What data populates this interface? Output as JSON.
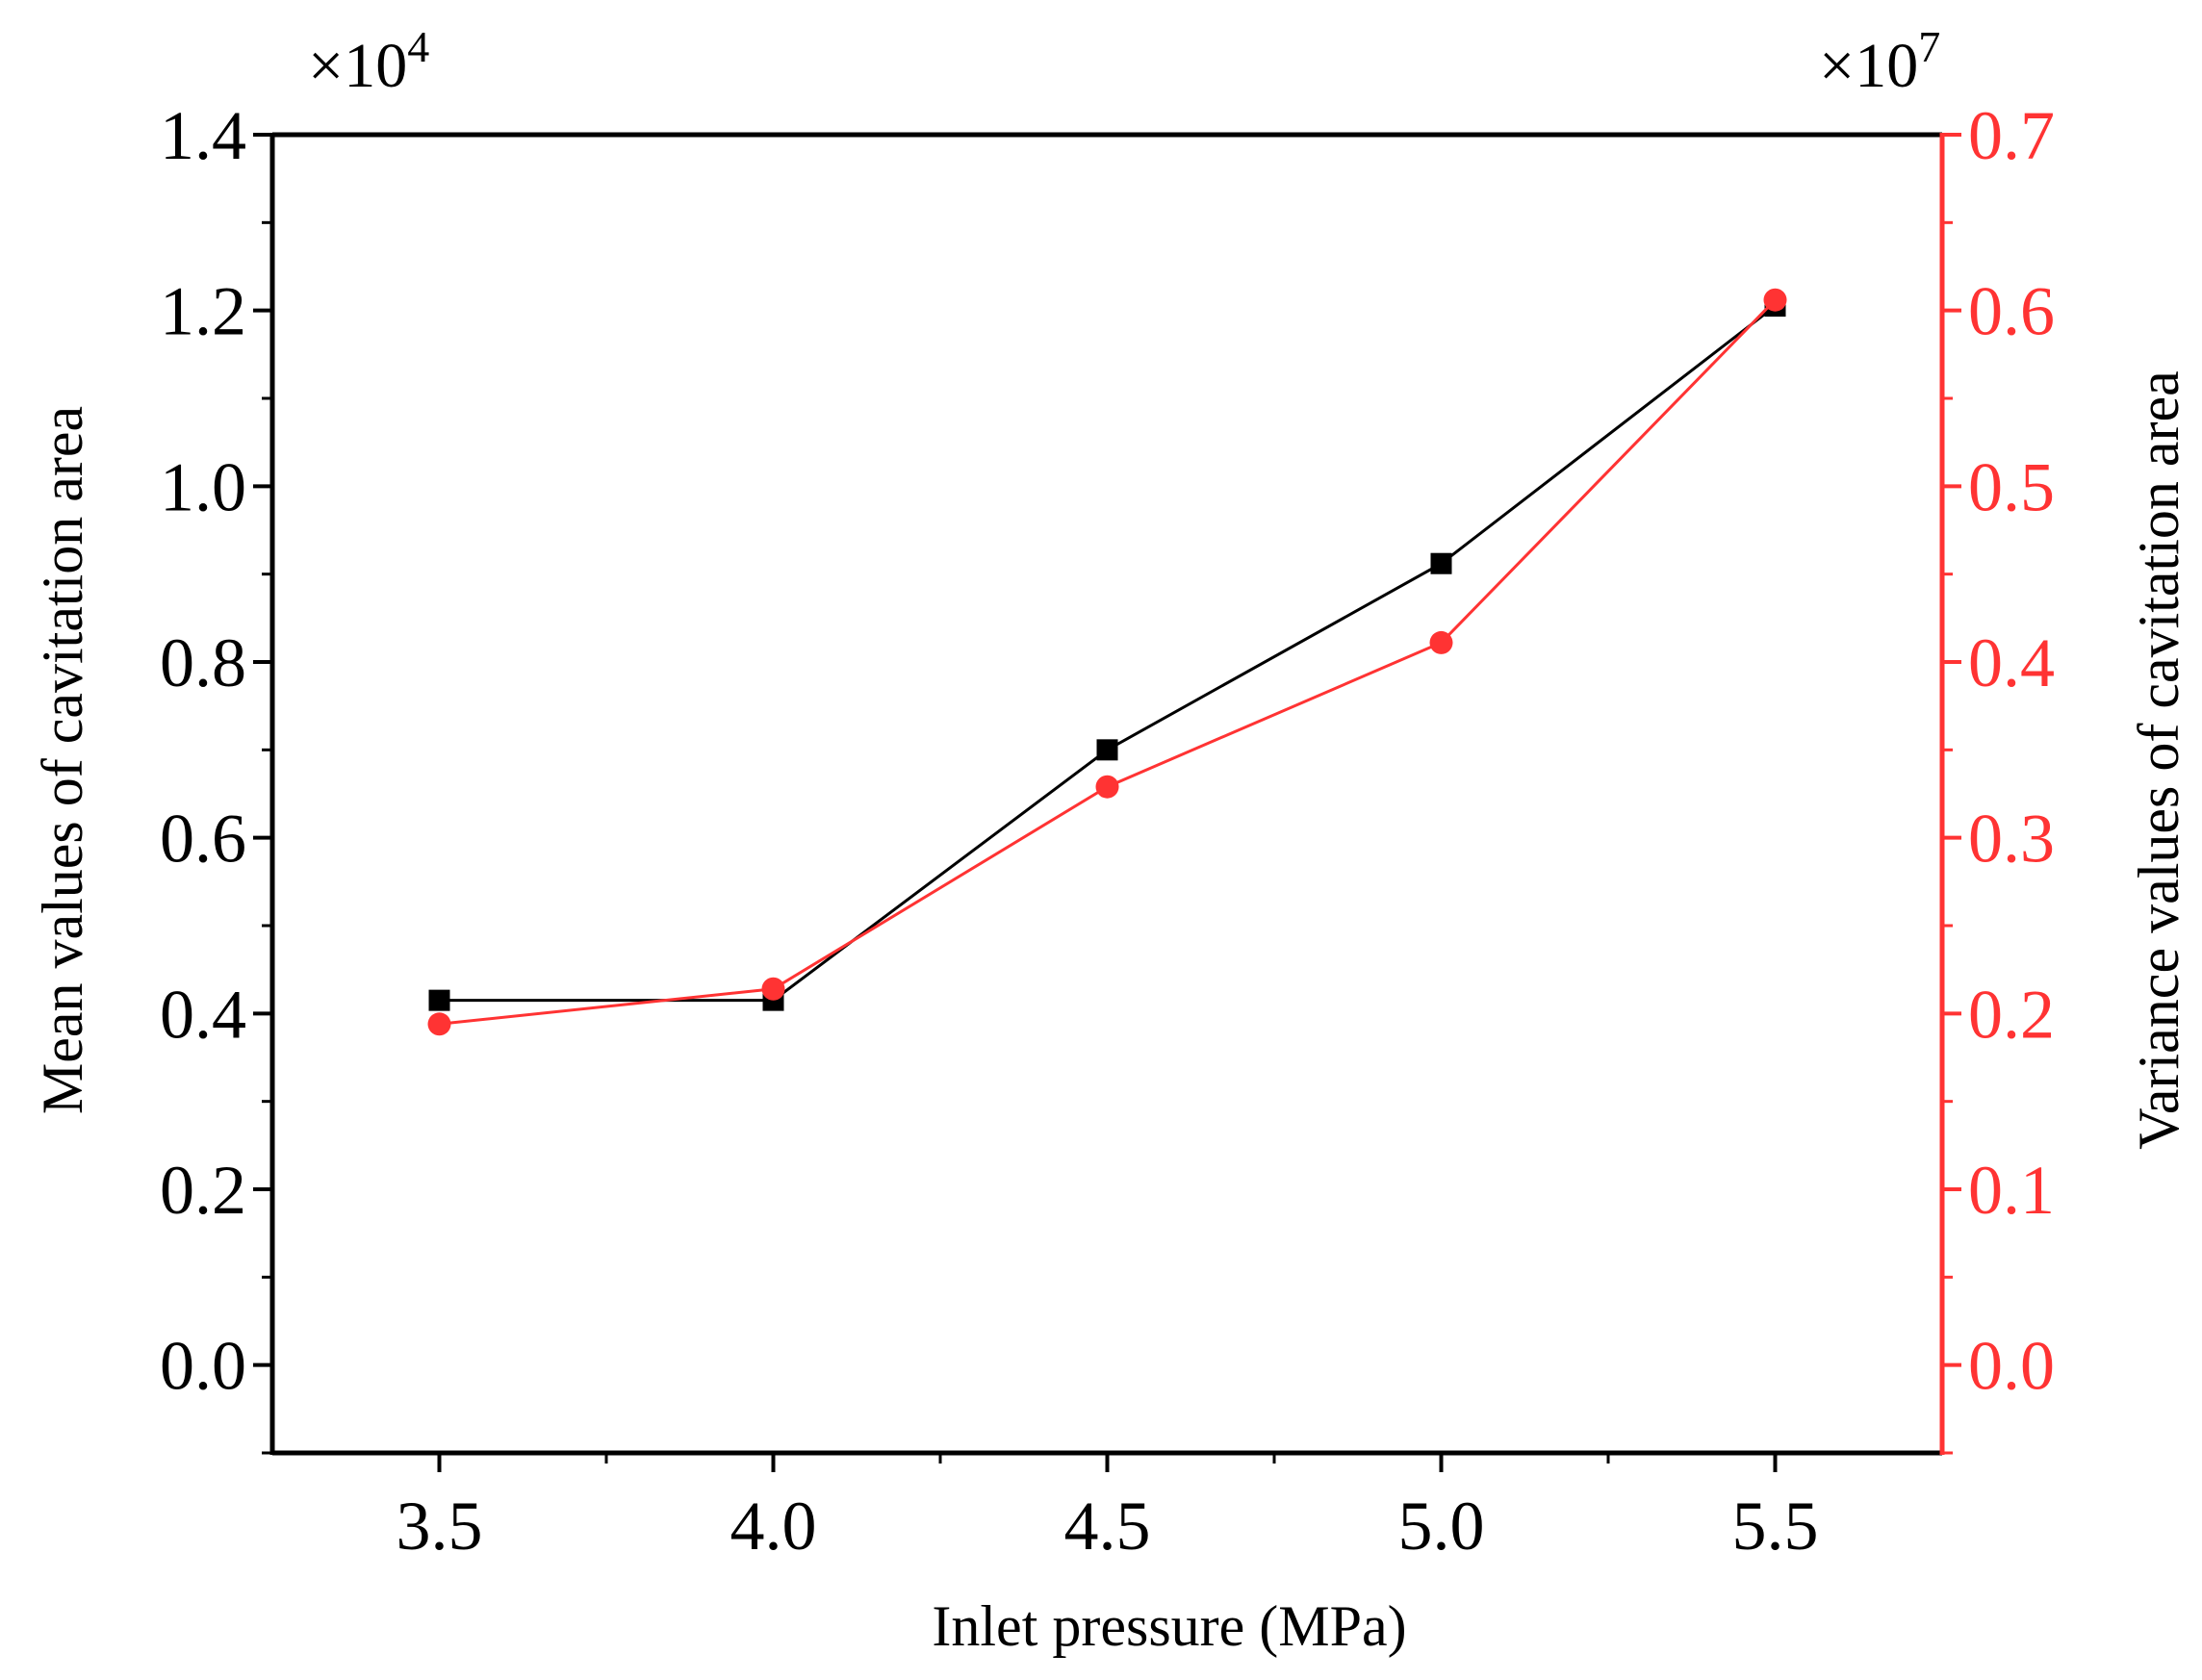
{
  "chart_data": {
    "type": "line",
    "xlabel": "Inlet pressure (MPa)",
    "ylabel_left": "Mean values of cavitation area",
    "ylabel_right": "Variance values of cavitation area",
    "x_ticks": [
      "3.5",
      "4.0",
      "4.5",
      "5.0",
      "5.5"
    ],
    "x_tick_values": [
      3.5,
      4.0,
      4.5,
      5.0,
      5.5
    ],
    "xlim": [
      3.25,
      5.75
    ],
    "y_left_ticks": [
      "0.0",
      "0.2",
      "0.4",
      "0.6",
      "0.8",
      "1.0",
      "1.2",
      "1.4"
    ],
    "y_left_tick_values": [
      0.0,
      0.2,
      0.4,
      0.6,
      0.8,
      1.0,
      1.2,
      1.4
    ],
    "y_left_lim": [
      -0.1,
      1.4
    ],
    "y_left_multiplier": {
      "base": "×10",
      "exp": "4"
    },
    "y_right_ticks": [
      "0.0",
      "0.1",
      "0.2",
      "0.3",
      "0.4",
      "0.5",
      "0.6",
      "0.7"
    ],
    "y_right_tick_values": [
      0.0,
      0.1,
      0.2,
      0.3,
      0.4,
      0.5,
      0.6,
      0.7
    ],
    "y_right_lim": [
      -0.05,
      0.7
    ],
    "y_right_multiplier": {
      "base": "×10",
      "exp": "7"
    },
    "x": [
      3.5,
      4.0,
      4.5,
      5.0,
      5.5
    ],
    "series": [
      {
        "name": "Mean",
        "axis": "left",
        "marker": "square",
        "color": "#000000",
        "values": [
          0.415,
          0.415,
          0.7,
          0.912,
          1.205
        ]
      },
      {
        "name": "Variance",
        "axis": "right",
        "marker": "circle",
        "color": "#ff3333",
        "values": [
          0.194,
          0.214,
          0.329,
          0.411,
          0.606
        ]
      }
    ],
    "colors": {
      "left_axis": "#000000",
      "right_axis": "#ff3333"
    },
    "grid": false
  }
}
